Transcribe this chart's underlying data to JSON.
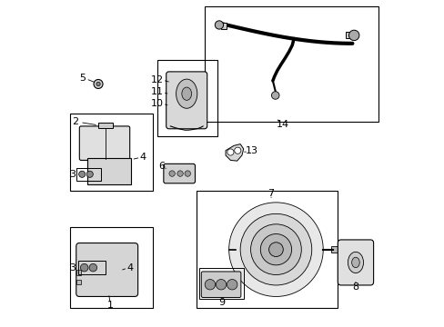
{
  "bg_color": "#ffffff",
  "line_color": "#000000",
  "text_color": "#000000",
  "label_font_size": 7
}
